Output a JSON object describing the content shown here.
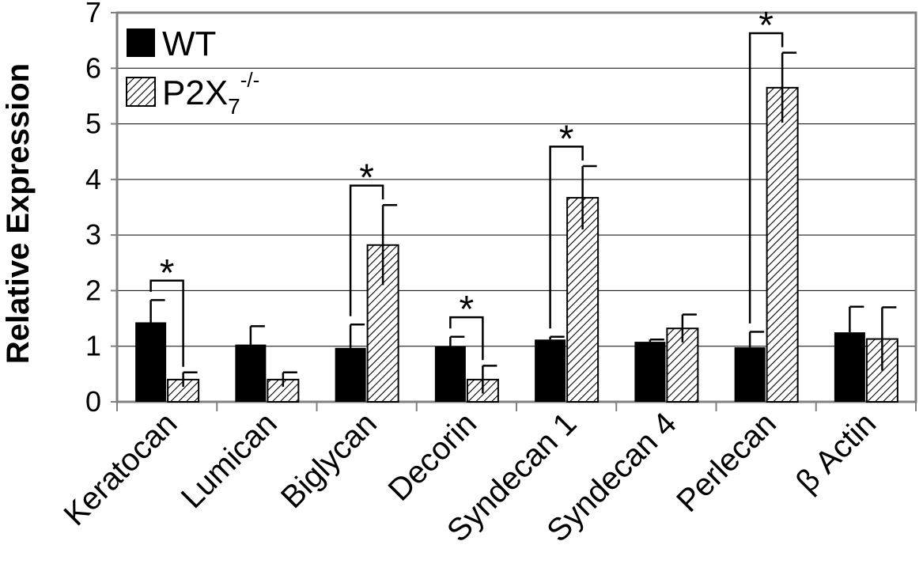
{
  "chart_data": {
    "type": "bar",
    "title": "",
    "xlabel": "",
    "ylabel": "Relative Expression",
    "ylim": [
      0,
      7
    ],
    "yticks": [
      "0",
      "1",
      "2",
      "3",
      "4",
      "5",
      "6",
      "7"
    ],
    "grid": true,
    "legend_position": "top-left",
    "categories": [
      "Keratocan",
      "Lumican",
      "Biglycan",
      "Decorin",
      "Syndecan 1",
      "Syndecan 4",
      "Perlecan",
      "β Actin"
    ],
    "series": [
      {
        "name": "WT",
        "fill": "#000000",
        "pattern": "solid",
        "values": [
          1.43,
          1.03,
          0.97,
          1.0,
          1.12,
          1.08,
          0.98,
          1.25
        ],
        "errors": [
          0.4,
          0.33,
          0.42,
          0.17,
          0.05,
          0.04,
          0.28,
          0.46
        ]
      },
      {
        "name": "P2X",
        "name_subscript": "7",
        "name_superscript": "-/-",
        "fill": "#ffffff",
        "pattern": "hatched",
        "values": [
          0.4,
          0.4,
          2.82,
          0.4,
          3.67,
          1.32,
          5.65,
          1.13
        ],
        "errors": [
          0.13,
          0.13,
          0.72,
          0.25,
          0.57,
          0.25,
          0.63,
          0.57
        ]
      }
    ],
    "annotations": {
      "significance_marker": "*",
      "significant_categories": [
        "Keratocan",
        "Biglycan",
        "Decorin",
        "Syndecan 1",
        "Perlecan"
      ]
    }
  }
}
